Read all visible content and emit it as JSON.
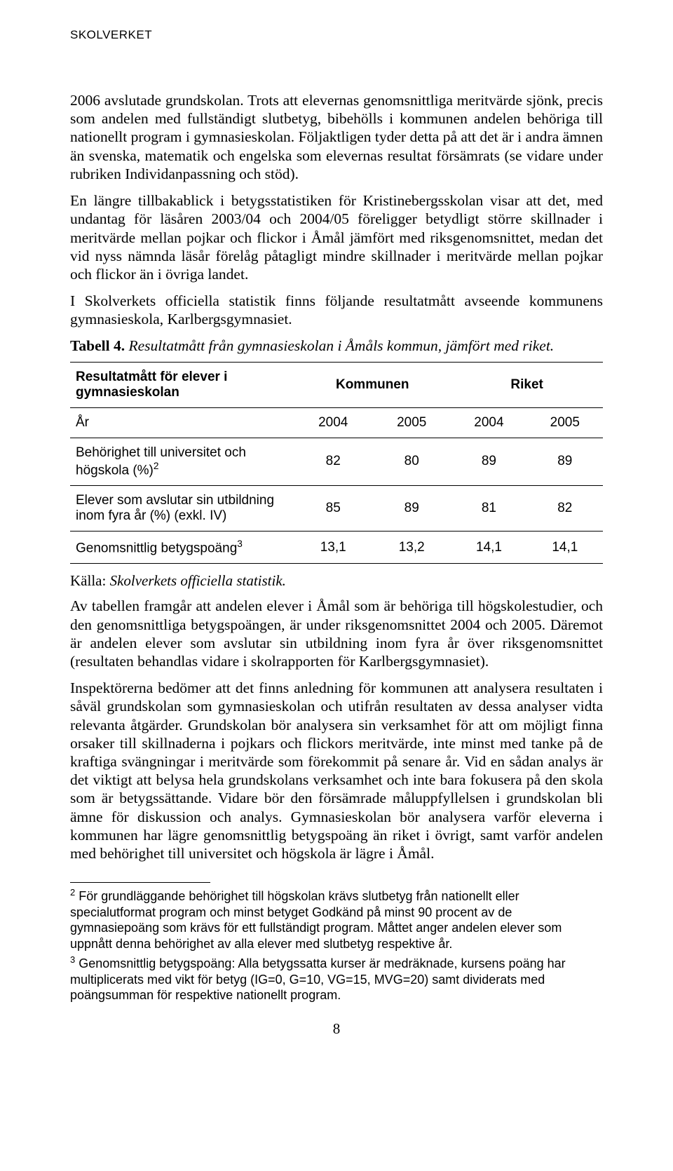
{
  "header": "SKOLVERKET",
  "paragraphs": {
    "p1": "2006 avslutade grundskolan. Trots att elevernas genomsnittliga meritvärde sjönk, precis som andelen med fullständigt slutbetyg, bibehölls i kommunen andelen behöriga till nationellt program i gymnasieskolan. Följaktligen tyder detta på att det är i andra ämnen än svenska, matematik och engelska som elevernas resultat försämrats (se vidare under rubriken Individanpassning och stöd).",
    "p2": "En längre tillbakablick i betygsstatistiken för Kristinebergsskolan visar att det, med undantag för läsåren 2003/04 och 2004/05 föreligger betydligt större skillnader i meritvärde mellan pojkar och flickor i Åmål jämfört med riksgenomsnittet, medan det vid nyss nämnda läsår förelåg påtagligt mindre skillnader i meritvärde mellan pojkar och flickor än i övriga landet.",
    "p3": "I Skolverkets officiella statistik finns följande resultatmått avseende kommunens gymnasieskola, Karlbergsgymnasiet.",
    "tabell_label_bold": "Tabell 4.",
    "tabell_label_italic": " Resultatmått från gymnasieskolan i Åmåls kommun, jämfört med riket.",
    "kalla_prefix": "Källa: ",
    "kalla_italic": "Skolverkets officiella statistik.",
    "p4": "Av tabellen framgår att andelen elever i Åmål som är behöriga till högskolestudier, och den genomsnittliga betygspoängen, är under riksgenomsnittet 2004 och 2005. Däremot är andelen elever som avslutar sin utbildning inom fyra år över riksgenomsnittet (resultaten behandlas vidare i skolrapporten för Karlbergsgymnasiet).",
    "p5": "Inspektörerna bedömer att det finns anledning för kommunen att analysera resultaten i såväl grundskolan som gymnasieskolan och utifrån resultaten av dessa analyser vidta relevanta åtgärder. Grundskolan bör analysera sin verksamhet för att om möjligt finna orsaker till skillnaderna i pojkars och flickors meritvärde, inte minst med tanke på de kraftiga svängningar i meritvärde som förekommit på senare år. Vid en sådan analys är det viktigt att belysa hela grundskolans verksamhet och inte bara fokusera på den skola som är betygssättande. Vidare bör den försämrade måluppfyllelsen i grundskolan bli ämne för diskussion och analys. Gymnasieskolan bör analysera varför eleverna i kommunen har lägre genomsnittlig betygspoäng än riket i övrigt, samt varför andelen med behörighet till universitet och högskola är lägre i Åmål."
  },
  "table": {
    "col_header_label": "Resultatmått för elever i gymnasieskolan",
    "group1": "Kommunen",
    "group2": "Riket",
    "year_label": "År",
    "years": [
      "2004",
      "2005",
      "2004",
      "2005"
    ],
    "rows": [
      {
        "label": "Behörighet till universitet och högskola (%)",
        "sup": "2",
        "vals": [
          "82",
          "80",
          "89",
          "89"
        ]
      },
      {
        "label": "Elever som avslutar sin utbildning inom fyra år (%) (exkl. IV)",
        "sup": "",
        "vals": [
          "85",
          "89",
          "81",
          "82"
        ]
      },
      {
        "label": "Genomsnittlig betygspoäng",
        "sup": "3",
        "vals": [
          "13,1",
          "13,2",
          "14,1",
          "14,1"
        ]
      }
    ]
  },
  "footnotes": {
    "f2_sup": "2",
    "f2": " För grundläggande behörighet till högskolan krävs slutbetyg från nationellt eller specialutformat program och minst betyget Godkänd på minst 90 procent av de gymnasiepoäng som krävs för ett fullständigt program. Måttet anger andelen elever som uppnått denna behörighet av alla elever med slutbetyg respektive år.",
    "f3_sup": "3",
    "f3": " Genomsnittlig betygspoäng: Alla betygssatta kurser är medräknade, kursens poäng har multiplicerats med vikt för betyg (IG=0, G=10, VG=15, MVG=20) samt dividerats med poängsumman för respektive nationellt program."
  },
  "page_number": "8"
}
